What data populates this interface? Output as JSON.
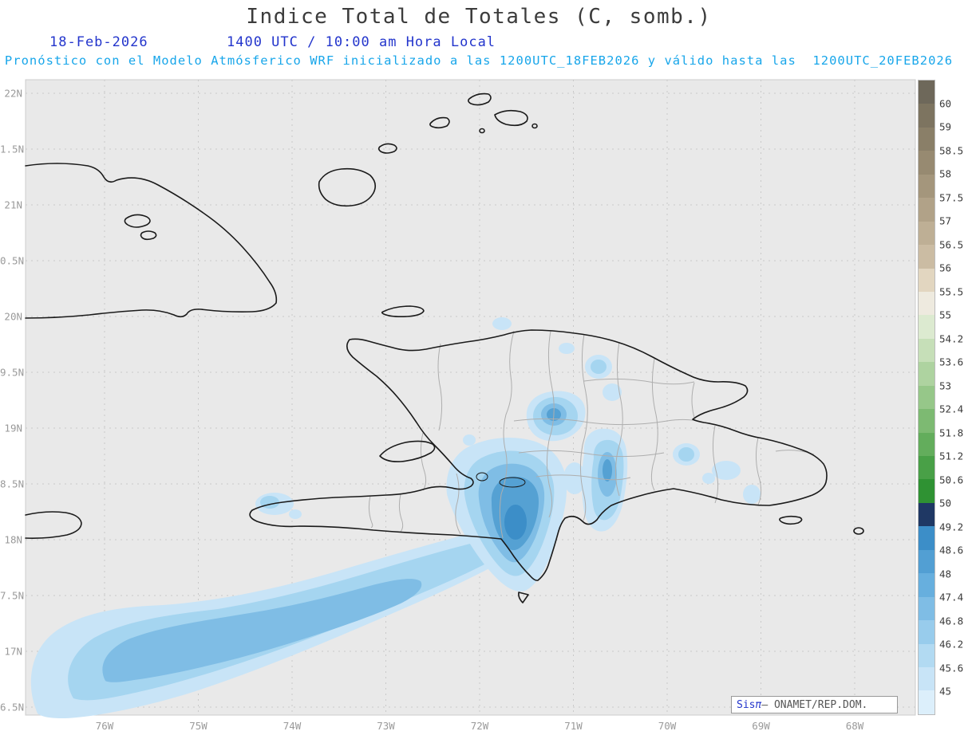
{
  "header": {
    "title": "Indice Total de Totales (C, somb.)",
    "date": "18-Feb-2026",
    "time_line": "1400 UTC / 10:00 am Hora Local",
    "forecast_line": "Pronóstico con el Modelo Atmósferico WRF inicializado a las 1200UTC_18FEB2026 y válido hasta las  1200UTC_20FEB2026"
  },
  "map": {
    "x_ticks": [
      "76W",
      "75W",
      "74W",
      "73W",
      "72W",
      "71W",
      "70W",
      "69W",
      "68W"
    ],
    "y_ticks": [
      "22N",
      "1.5N",
      "21N",
      "0.5N",
      "20N",
      "9.5N",
      "19N",
      "8.5N",
      "18N",
      "7.5N",
      "17N",
      "6.5N"
    ],
    "background_color": "#e9e9e9",
    "frame_color": "#cccccc",
    "gridline_color": "#c9c9c9",
    "coastline_color": "#1a1a1a",
    "boundary_color": "#aeaeae",
    "shading_palette": [
      "#c8e4f7",
      "#a5d5f0",
      "#7fbde5",
      "#55a1d3",
      "#3c8ec8"
    ]
  },
  "colorbar": {
    "boundary_labels": [
      "60",
      "59",
      "58.5",
      "58",
      "57.5",
      "57",
      "56.5",
      "56",
      "55.5",
      "55",
      "54.2",
      "53.6",
      "53",
      "52.4",
      "51.8",
      "51.2",
      "50.6",
      "50",
      "49.2",
      "48.6",
      "48",
      "47.4",
      "46.8",
      "46.2",
      "45.6",
      "45"
    ],
    "segment_colors": [
      "#6e685a",
      "#7d7460",
      "#8a7f68",
      "#978a71",
      "#a4967c",
      "#b1a288",
      "#beaf95",
      "#cbbca3",
      "#e2d6c0",
      "#eeeadf",
      "#dcead0",
      "#c6dfb8",
      "#aed3a0",
      "#96c789",
      "#7dba72",
      "#63ad5c",
      "#49a047",
      "#2f9233",
      "#1f3864",
      "#3c8ec8",
      "#529fd3",
      "#67afde",
      "#7fbde5",
      "#98ccec",
      "#b2daf2",
      "#c8e4f7",
      "#dceffb"
    ]
  },
  "attribution": {
    "app": "Sis",
    "pi": "π",
    "org": "— ONAMET/REP.DOM."
  }
}
